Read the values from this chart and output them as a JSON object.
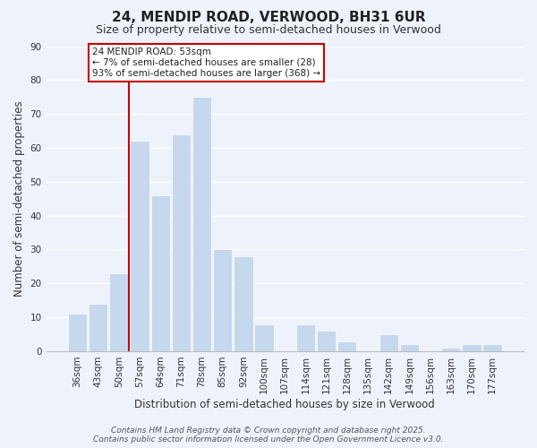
{
  "title": "24, MENDIP ROAD, VERWOOD, BH31 6UR",
  "subtitle": "Size of property relative to semi-detached houses in Verwood",
  "xlabel": "Distribution of semi-detached houses by size in Verwood",
  "ylabel": "Number of semi-detached properties",
  "bar_labels": [
    "36sqm",
    "43sqm",
    "50sqm",
    "57sqm",
    "64sqm",
    "71sqm",
    "78sqm",
    "85sqm",
    "92sqm",
    "100sqm",
    "107sqm",
    "114sqm",
    "121sqm",
    "128sqm",
    "135sqm",
    "142sqm",
    "149sqm",
    "156sqm",
    "163sqm",
    "170sqm",
    "177sqm"
  ],
  "bar_values": [
    11,
    14,
    23,
    62,
    46,
    64,
    75,
    30,
    28,
    8,
    0,
    8,
    6,
    3,
    0,
    5,
    2,
    0,
    1,
    2,
    2
  ],
  "bar_color": "#c5d8ee",
  "bar_edge_color": "#ffffff",
  "vline_color": "#cc0000",
  "ylim": [
    0,
    90
  ],
  "yticks": [
    0,
    10,
    20,
    30,
    40,
    50,
    60,
    70,
    80,
    90
  ],
  "annotation_title": "24 MENDIP ROAD: 53sqm",
  "annotation_line1": "← 7% of semi-detached houses are smaller (28)",
  "annotation_line2": "93% of semi-detached houses are larger (368) →",
  "annotation_box_facecolor": "#ffffff",
  "annotation_box_edgecolor": "#cc0000",
  "footer_line1": "Contains HM Land Registry data © Crown copyright and database right 2025.",
  "footer_line2": "Contains public sector information licensed under the Open Government Licence v3.0.",
  "background_color": "#eef2fa",
  "grid_color": "#ffffff",
  "title_fontsize": 11,
  "subtitle_fontsize": 9,
  "axis_label_fontsize": 8.5,
  "tick_fontsize": 7.5,
  "annotation_fontsize": 7.5,
  "footer_fontsize": 6.5
}
